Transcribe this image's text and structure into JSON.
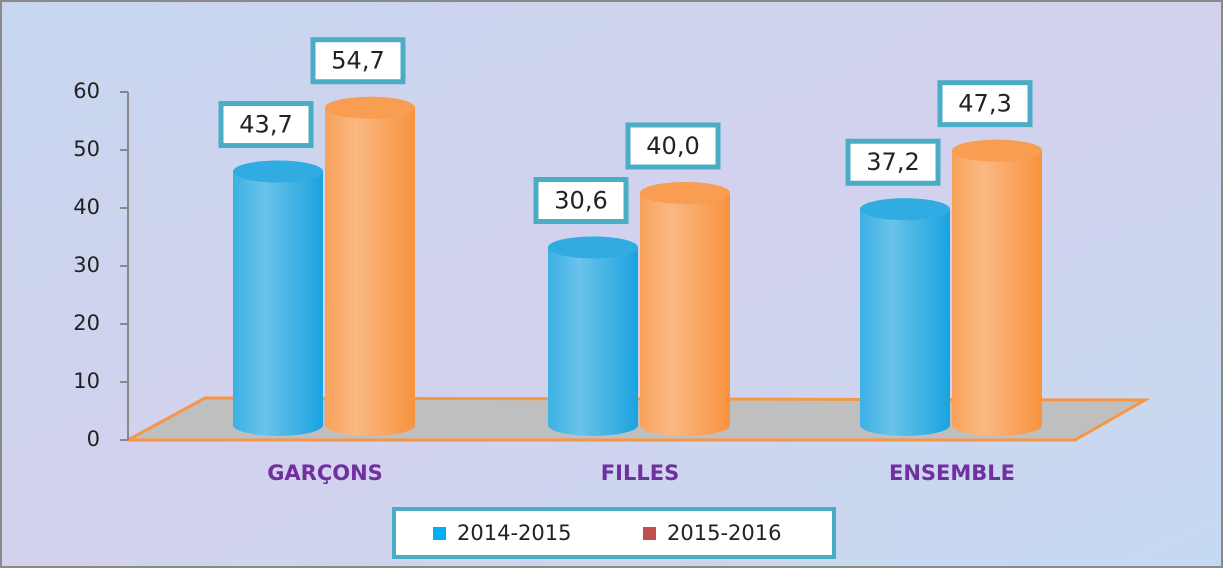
{
  "chart_data": {
    "type": "bar3d",
    "categories": [
      "GARÇONS",
      "FILLES",
      "ENSEMBLE"
    ],
    "series": [
      {
        "name": "2014-2015",
        "color": "#1aa3df",
        "legend_color": "#00b0f0",
        "values": [
          43.7,
          30.6,
          37.2
        ],
        "value_labels": [
          "43,7",
          "30,6",
          "37,2"
        ]
      },
      {
        "name": "2015-2016",
        "color": "#f7923e",
        "legend_color": "#c0504d",
        "values": [
          54.7,
          40.0,
          47.3
        ],
        "value_labels": [
          "54,7",
          "40,0",
          "47,3"
        ]
      }
    ],
    "ylim": [
      0,
      60
    ],
    "yticks": [
      0,
      10,
      20,
      30,
      40,
      50,
      60
    ],
    "legend": "bottom"
  }
}
